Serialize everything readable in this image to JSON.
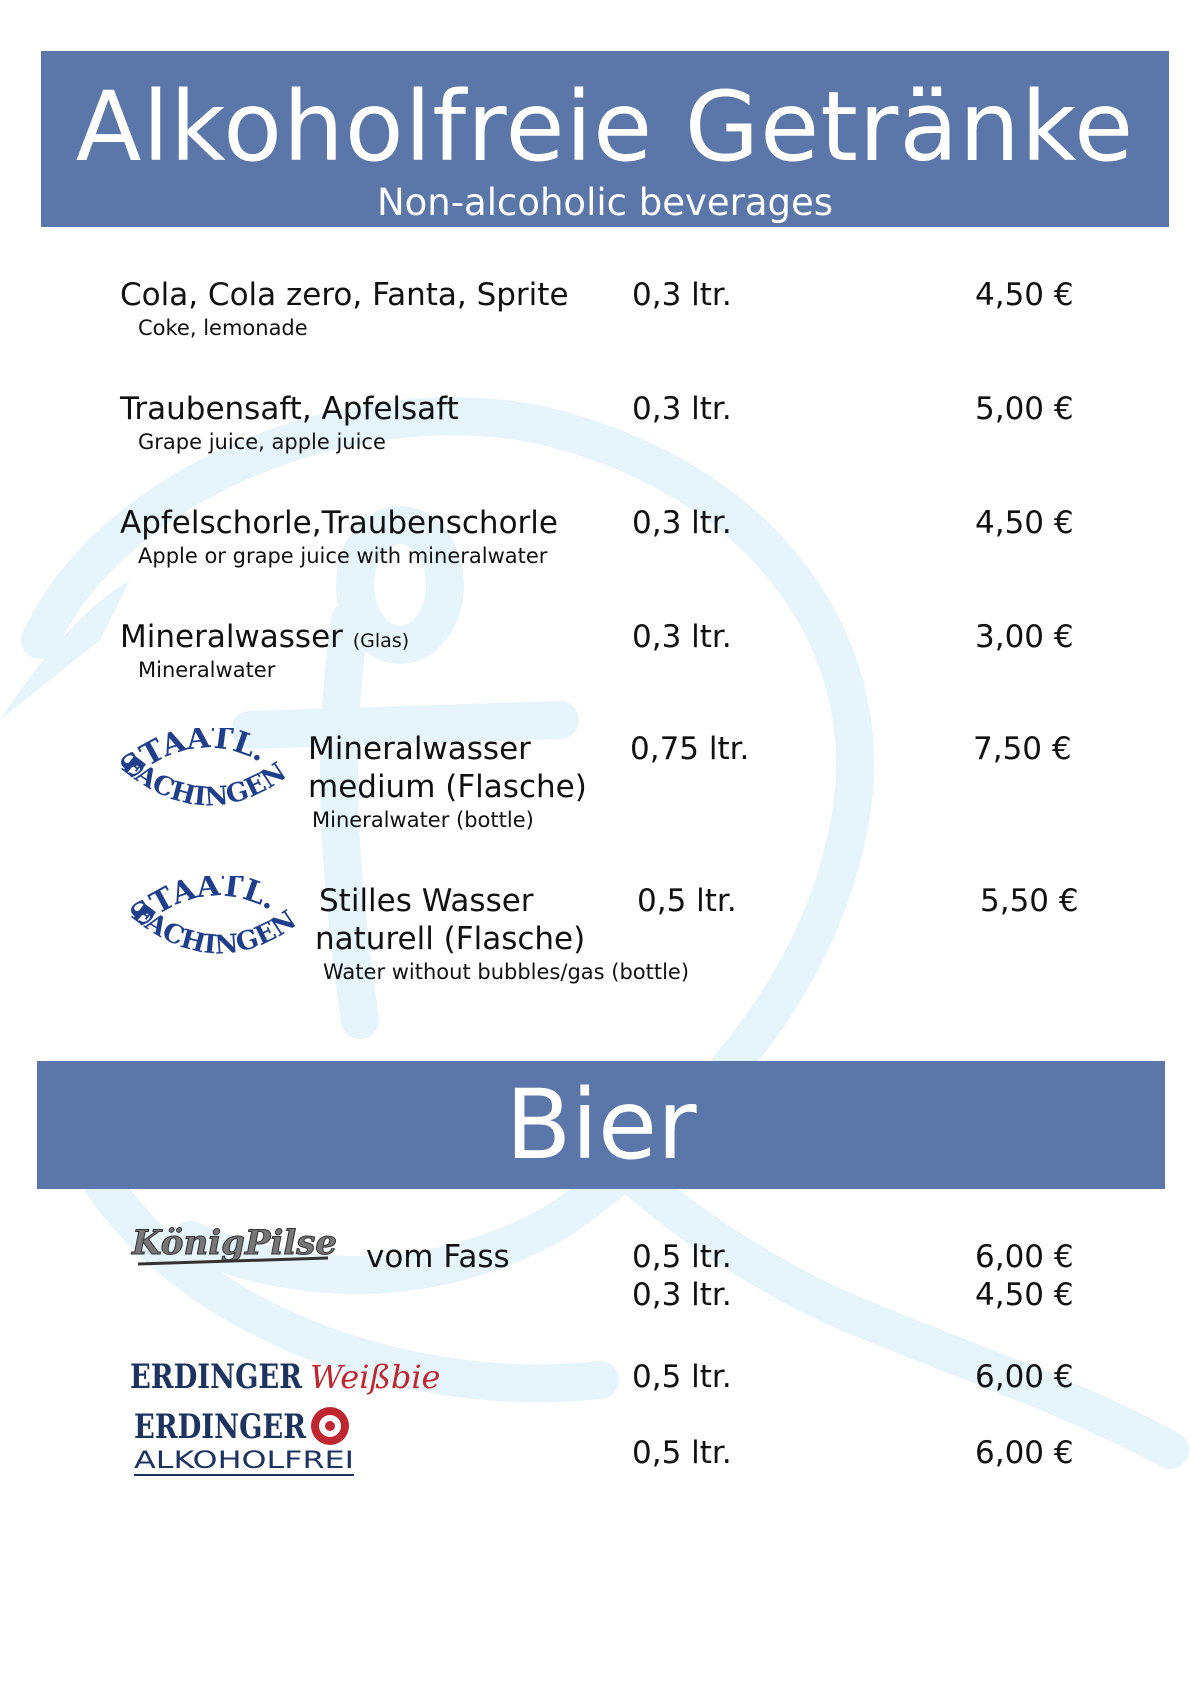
{
  "header": {
    "title": "Alkoholfreie Getränke",
    "subtitle": "Non-alcoholic beverages"
  },
  "items": [
    {
      "name": "Cola, Cola zero, Fanta, Sprite",
      "sub": "Coke, lemonade",
      "qty": "0,3 ltr.",
      "price": "4,50 €"
    },
    {
      "name": "Traubensaft, Apfelsaft",
      "sub": "Grape juice, apple juice",
      "qty": "0,3 ltr.",
      "price": "5,00 €"
    },
    {
      "name": "Apfelschorle,Traubenschorle",
      "sub": "Apple or grape juice with mineralwater",
      "qty": "0,3 ltr.",
      "price": "4,50 €"
    },
    {
      "name": "Mineralwasser",
      "note": "(Glas)",
      "sub": "Mineralwater",
      "qty": "0,3 ltr.",
      "price": "3,00 €"
    },
    {
      "name_line1": "Mineralwasser",
      "name_line2": "medium (Flasche)",
      "sub": "Mineralwater (bottle)",
      "qty": "0,75 ltr.",
      "price": "7,50 €",
      "logo_text_top": "STAATL.",
      "logo_text_bottom": "FACHINGEN"
    },
    {
      "name_line1": "Stilles Wasser",
      "name_line2": "naturell  (Flasche)",
      "sub": "Water without bubbles/gas (bottle)",
      "qty": "0,5 ltr.",
      "price": "5,50 €",
      "logo_text_top": "STAATL.",
      "logo_text_bottom": "FACHINGEN"
    }
  ],
  "beer_header": {
    "title": "Bier"
  },
  "beers": [
    {
      "logo_text": "KönigPilsener",
      "name": "vom Fass",
      "qty1": "0,5 ltr.",
      "price1": "6,00 €",
      "qty2": "0,3 ltr.",
      "price2": "4,50 €"
    },
    {
      "logo_text_a": "ERDINGER",
      "logo_text_b": "Weißbier",
      "qty": "0,5 ltr.",
      "price": "6,00 €"
    },
    {
      "logo_text_a": "ERDINGER",
      "logo_text_b": "ALKOHOLFREI",
      "qty": "0,5 ltr.",
      "price": "6,00 €"
    }
  ],
  "colors": {
    "banner": "#5b76a8",
    "watermark": "#e6f4fb",
    "fachingen_blue": "#1f3f8c",
    "erdinger_blue": "#1d3461",
    "erdinger_red": "#c0262f"
  }
}
